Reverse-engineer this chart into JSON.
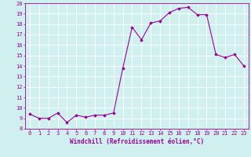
{
  "x": [
    0,
    1,
    2,
    3,
    4,
    5,
    6,
    7,
    8,
    9,
    10,
    11,
    12,
    13,
    14,
    15,
    16,
    17,
    18,
    19,
    20,
    21,
    22,
    23
  ],
  "y": [
    9.4,
    9.0,
    9.0,
    9.5,
    8.6,
    9.3,
    9.1,
    9.3,
    9.3,
    9.5,
    13.8,
    17.7,
    16.5,
    18.1,
    18.3,
    19.1,
    19.5,
    19.6,
    18.9,
    18.9,
    15.1,
    14.8,
    15.1,
    14.0
  ],
  "line_color": "#990099",
  "marker": "D",
  "markersize": 1.8,
  "linewidth": 0.8,
  "xlabel": "Windchill (Refroidissement éolien,°C)",
  "xlabel_fontsize": 5.5,
  "xlabel_color": "#990099",
  "background_color": "#cff0ee",
  "grid_color": "#ffffff",
  "tick_color": "#990099",
  "tick_labelsize": 5.0,
  "ylim": [
    8,
    20
  ],
  "xlim_min": -0.5,
  "xlim_max": 23.5,
  "yticks": [
    8,
    9,
    10,
    11,
    12,
    13,
    14,
    15,
    16,
    17,
    18,
    19,
    20
  ],
  "xticks": [
    0,
    1,
    2,
    3,
    4,
    5,
    6,
    7,
    8,
    9,
    10,
    11,
    12,
    13,
    14,
    15,
    16,
    17,
    18,
    19,
    20,
    21,
    22,
    23
  ]
}
